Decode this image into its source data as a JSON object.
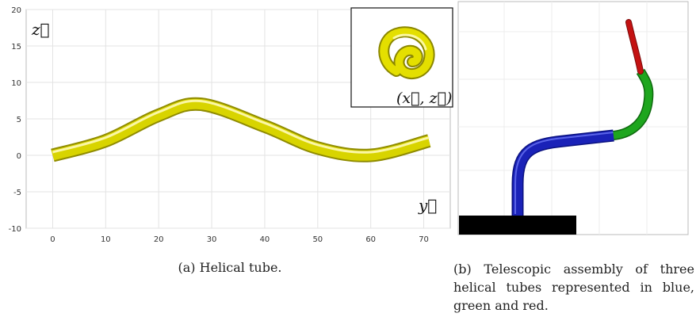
{
  "figure_a": {
    "caption": "(a) Helical tube.",
    "axis_labels": {
      "y_vector": "y⃗",
      "z_vector": "z⃗"
    },
    "inset_label": "(x⃗, z⃗)",
    "tube_color": "#d8d400"
  },
  "figure_b": {
    "caption": "(b)  Telescopic  assembly  of three helical tubes represented in blue, green and red.",
    "colors": {
      "blue": "#1a22b8",
      "green": "#1ea61e",
      "red": "#c41212",
      "base": "#000000"
    }
  },
  "chart_data": {
    "type": "line",
    "title": "",
    "xlabel": "y⃗",
    "ylabel": "z⃗",
    "xlim": [
      -5,
      75
    ],
    "ylim": [
      -10,
      20
    ],
    "x_ticks": [
      0,
      10,
      20,
      30,
      40,
      50,
      60,
      70
    ],
    "y_ticks": [
      -10,
      -5,
      0,
      5,
      10,
      15,
      20
    ],
    "grid": true,
    "series": [
      {
        "x": [
          0,
          10,
          20,
          28,
          40,
          50,
          60,
          71
        ],
        "y": [
          0,
          2,
          5.5,
          7,
          4,
          1,
          0,
          2
        ]
      }
    ]
  }
}
